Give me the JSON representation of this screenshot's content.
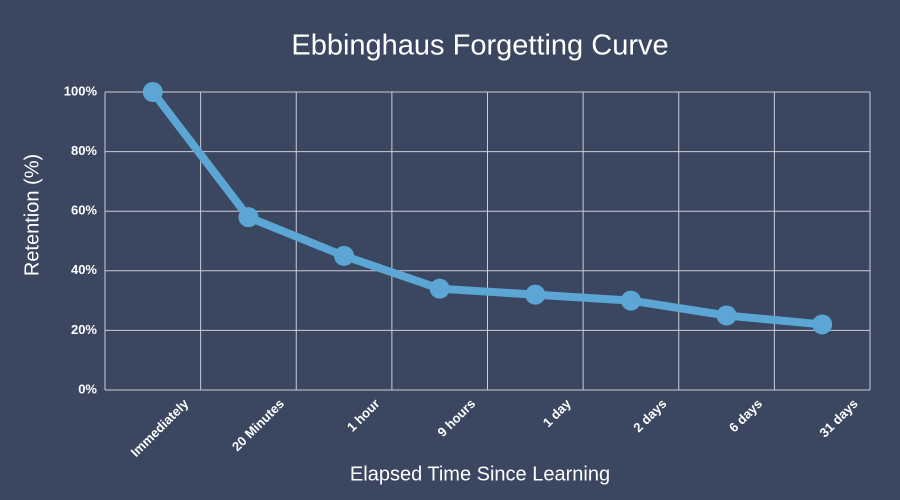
{
  "chart_data": {
    "type": "line",
    "title": "Ebbinghaus Forgetting Curve",
    "x_label": "Elapsed Time Since Learning",
    "y_label": "Retention (%)",
    "categories": [
      "Immediately",
      "20 Minutes",
      "1 hour",
      "9 hours",
      "1 day",
      "2 days",
      "6 days",
      "31 days"
    ],
    "values": [
      100,
      58,
      45,
      34,
      32,
      30,
      25,
      22
    ],
    "color": "#5ba6d4",
    "ylim": [
      0,
      100
    ],
    "yticks": [
      {
        "value": 0,
        "label": "0%"
      },
      {
        "value": 20,
        "label": "20%"
      },
      {
        "value": 40,
        "label": "40%"
      },
      {
        "value": 60,
        "label": "60%"
      },
      {
        "value": 80,
        "label": "80%"
      },
      {
        "value": 100,
        "label": "100%"
      }
    ],
    "grid": true
  }
}
